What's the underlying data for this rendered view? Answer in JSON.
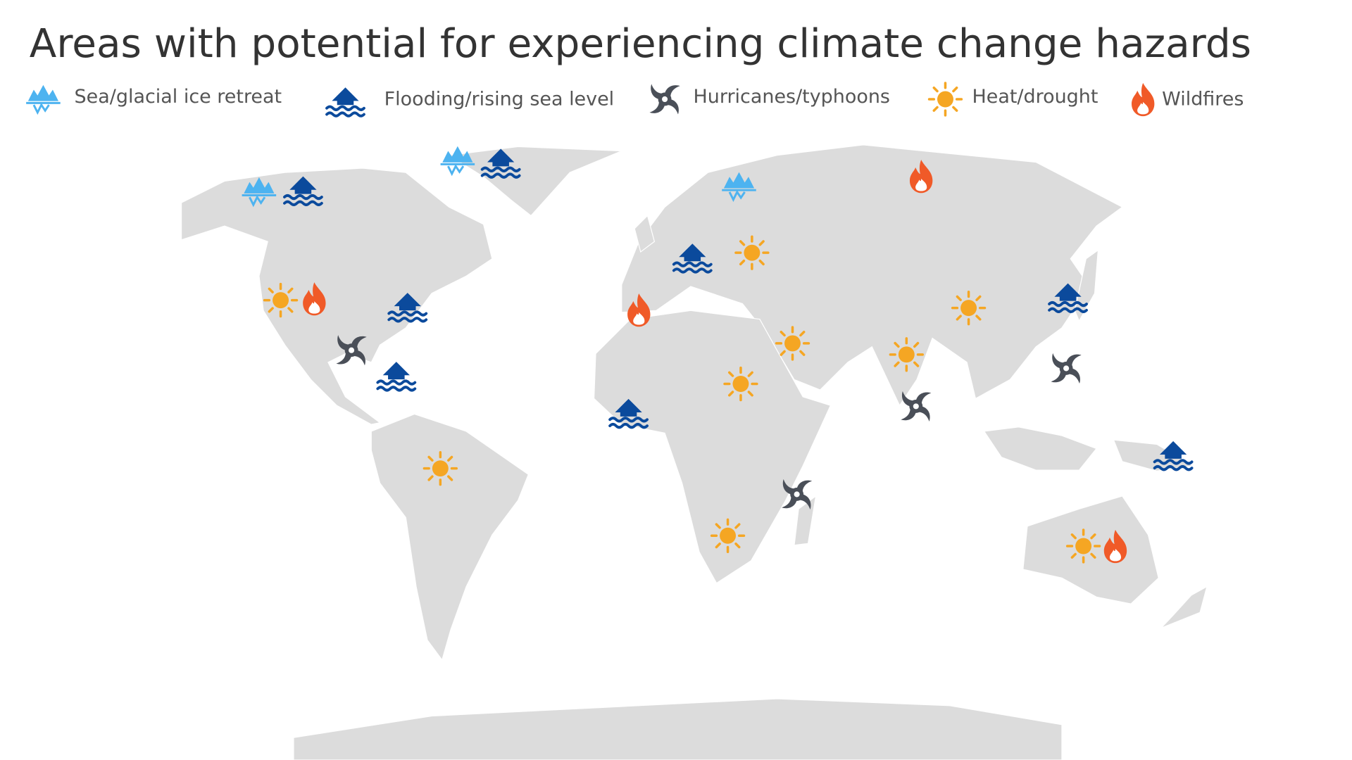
{
  "title": "Areas with potential for experiencing climate change hazards",
  "legend": [
    {
      "label": "Sea/glacial ice retreat"
    },
    {
      "label": "Flooding/rising sea level"
    },
    {
      "label": "Hurricanes/typhoons"
    },
    {
      "label": "Heat/drought"
    },
    {
      "label": "Wildfires"
    }
  ]
}
